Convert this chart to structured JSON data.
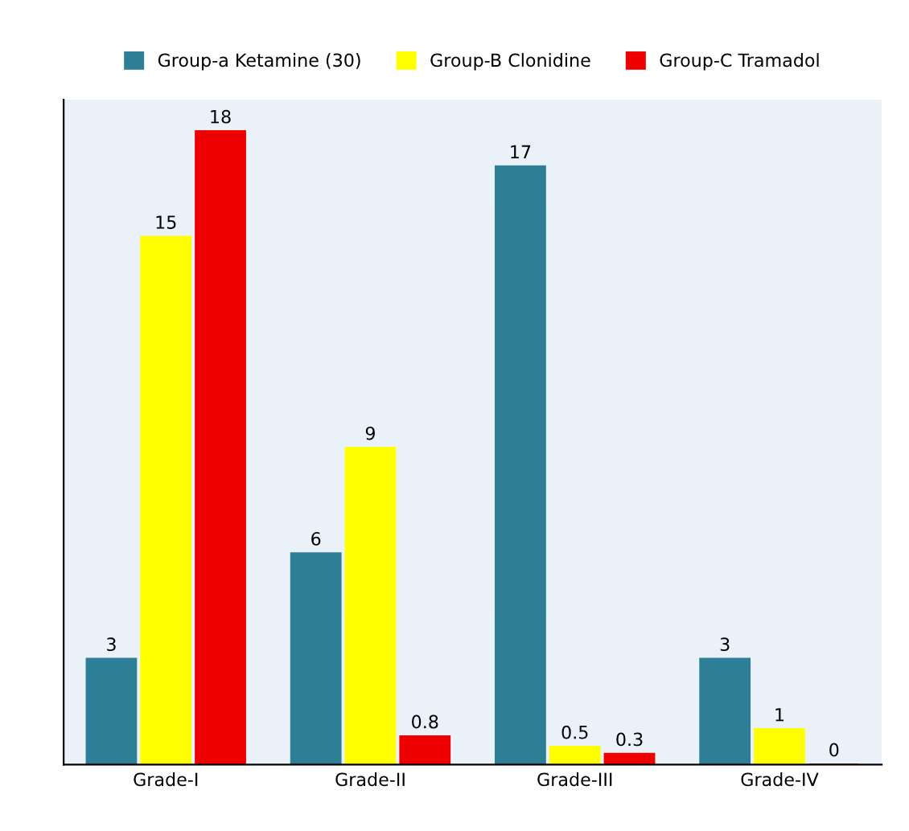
{
  "chart_data": {
    "type": "bar",
    "categories": [
      "Grade-I",
      "Grade-II",
      "Grade-III",
      "Grade-IV"
    ],
    "series": [
      {
        "name": "Group-a Ketamine (30)",
        "color": "#2e7f96",
        "values": [
          3,
          6,
          17,
          3
        ]
      },
      {
        "name": "Group-B Clonidine",
        "color": "#ffff00",
        "values": [
          15,
          9,
          0.5,
          1
        ]
      },
      {
        "name": "Group-C Tramadol",
        "color": "#ee0000",
        "values": [
          18,
          0.8,
          0.3,
          0
        ]
      }
    ],
    "data_labels": true,
    "legend": "top",
    "grid": false,
    "tick_labels": "x"
  }
}
